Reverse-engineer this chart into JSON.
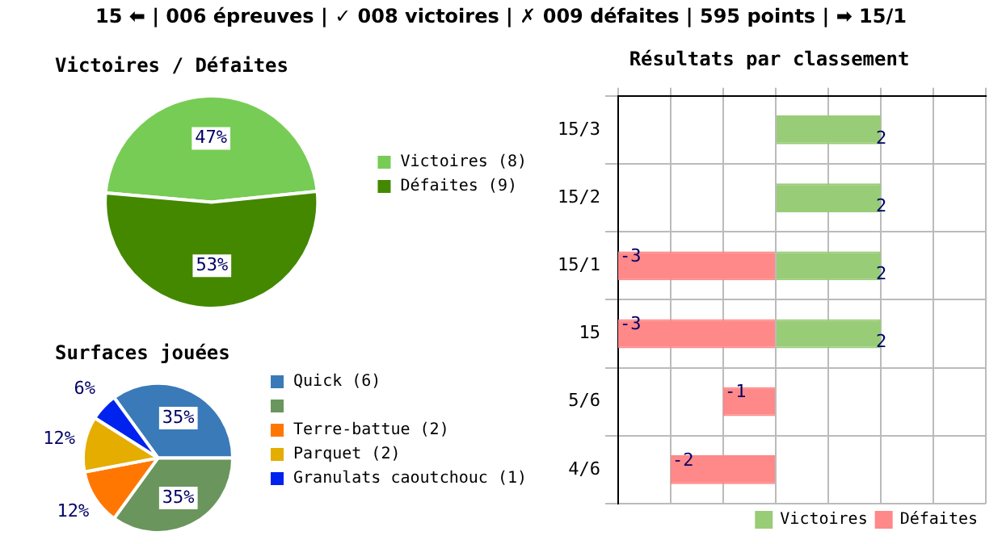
{
  "chart_data": [
    {
      "type": "other",
      "annotations": [
        "15 ⬅ | 006 épreuves | ✓ 008 victoires | ✗ 009 défaites | 595 points | ➡ 15/1"
      ]
    },
    {
      "type": "pie",
      "title": "Victoires / Défaites",
      "categories": [
        "Victoires (8)",
        "Défaites (9)"
      ],
      "values": [
        47,
        53
      ],
      "colors": [
        "#77cc55",
        "#448800"
      ],
      "value_labels": [
        "47%",
        "53%"
      ],
      "legend": "right"
    },
    {
      "type": "pie",
      "title": "Surfaces jouées",
      "categories": [
        "Quick (6)",
        null,
        "Terre-battue (2)",
        "Parquet (2)",
        "Granulats caoutchouc (1)"
      ],
      "values": [
        35,
        35,
        12,
        12,
        6
      ],
      "colors": [
        "#3a7ab8",
        "#6a955c",
        "#ff7700",
        "#e5ad00",
        "#0022ee"
      ],
      "value_labels": [
        "35%",
        "35%",
        "12%",
        "12%",
        "6%"
      ],
      "legend": "right"
    },
    {
      "type": "bar",
      "title": "Résultats par classement",
      "orientation": "horizontal",
      "stacked": true,
      "categories": [
        "15/3",
        "15/2",
        "15/1",
        "15",
        "5/6",
        "4/6"
      ],
      "series": [
        {
          "name": "Victoires",
          "color": "#99cc77",
          "values": [
            2,
            2,
            2,
            2,
            null,
            null
          ]
        },
        {
          "name": "Défaites",
          "color": "#ff8888",
          "values": [
            null,
            null,
            -3,
            -3,
            -1,
            -2
          ]
        }
      ],
      "xlim": [
        -3,
        4
      ],
      "xticks": [
        {
          "value": -3,
          "label": null
        },
        {
          "value": -2,
          "label": null
        },
        {
          "value": -1,
          "label": null
        },
        {
          "value": 0,
          "label": null
        },
        {
          "value": 1,
          "label": null
        },
        {
          "value": 2,
          "label": null
        },
        {
          "value": 3,
          "label": null
        },
        {
          "value": 4,
          "label": null
        }
      ],
      "tick_labels": "y",
      "grid": true,
      "data_labels": true,
      "legend": "bottom right"
    }
  ]
}
